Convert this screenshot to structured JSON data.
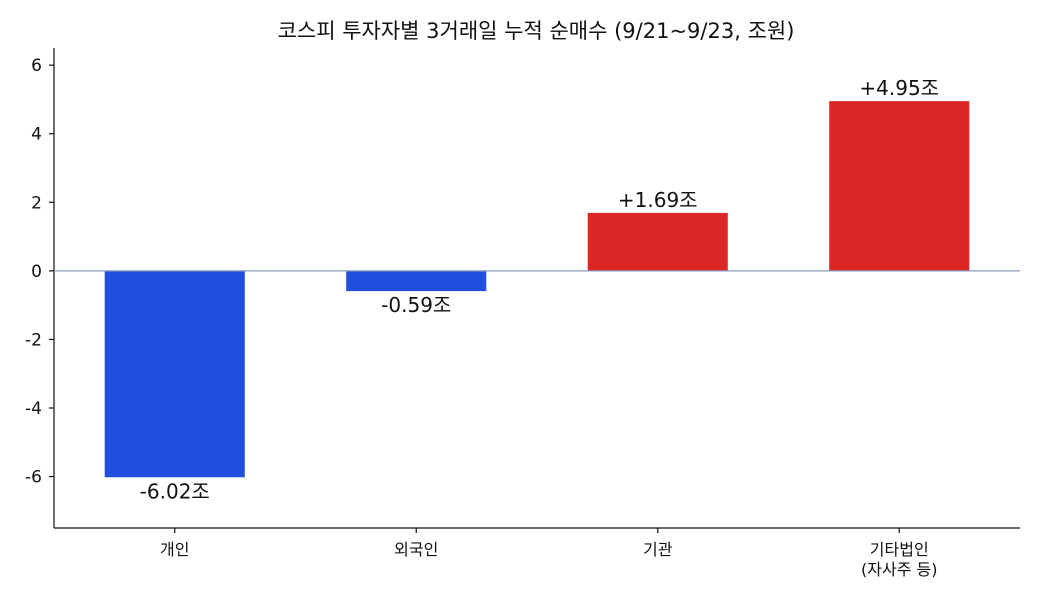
{
  "chart_data": {
    "type": "bar",
    "title": "코스피 투자자별 3거래일 누적 순매수 (9/21~9/23, 조원)",
    "categories": [
      "개인",
      "외국인",
      "기관",
      "기타법인\n(자사주 등)"
    ],
    "values": [
      -6.02,
      -0.59,
      1.69,
      4.95
    ],
    "data_labels": [
      "-6.02조",
      "-0.59조",
      "+1.69조",
      "+4.95조"
    ],
    "xlabel": "",
    "ylabel": "",
    "ylim": [
      -7.5,
      6.5
    ],
    "yticks": [
      -6,
      -4,
      -2,
      0,
      2,
      4,
      6
    ],
    "ytick_labels": [
      "-6",
      "-4",
      "-2",
      "0",
      "2",
      "4",
      "6"
    ],
    "grid": false,
    "colors": {
      "negative": "#1f4fdc",
      "positive": "#dc2626",
      "zero_line": "#8a9bb8"
    }
  }
}
